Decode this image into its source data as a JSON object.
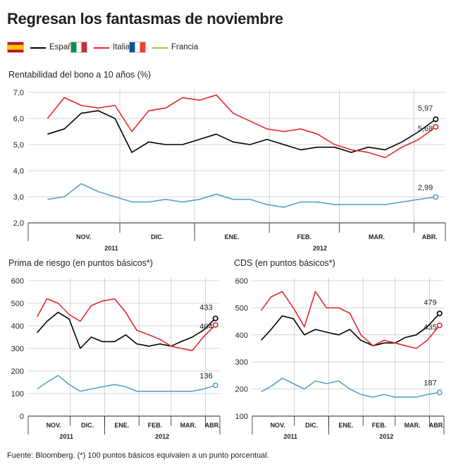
{
  "title": "Regresan los fantasmas de noviembre",
  "legend": [
    {
      "name": "España",
      "color": "#000000",
      "flag": "spain-flag-icon"
    },
    {
      "name": "Italia",
      "color": "#e8272b",
      "flag": "italy-flag-icon"
    },
    {
      "name": "Francia",
      "color": "#a6c53a",
      "flag": "france-flag-icon"
    }
  ],
  "footnote": "Fuente: Bloomberg. (*) 100 puntos básicos equivalen a un punto porcentual.",
  "colors": {
    "spain": "#000000",
    "italy": "#e8272b",
    "france": "#5aa0cf",
    "grid": "#c8c8c8"
  },
  "chart_data": [
    {
      "type": "line",
      "title": "Rentabilidad del bono a 10 años (%)",
      "ylim": [
        2.0,
        7.0
      ],
      "yticks": [
        "7,0",
        "6,0",
        "5,0",
        "4,0",
        "3,0",
        "2,0"
      ],
      "ytick_values": [
        7,
        6,
        5,
        4,
        3,
        2
      ],
      "months": [
        "NOV.",
        "DIC.",
        "ENE.",
        "FEB.",
        "MAR.",
        "ABR."
      ],
      "years": [
        "2011",
        "2012"
      ],
      "end_labels": [
        "5,97",
        "5,68",
        "2,99"
      ],
      "x": [
        "2011-11-01",
        "2011-11-08",
        "2011-11-15",
        "2011-11-22",
        "2011-11-29",
        "2011-12-06",
        "2011-12-13",
        "2011-12-20",
        "2011-12-27",
        "2012-01-03",
        "2012-01-10",
        "2012-01-17",
        "2012-01-24",
        "2012-01-31",
        "2012-02-07",
        "2012-02-14",
        "2012-02-21",
        "2012-02-28",
        "2012-03-06",
        "2012-03-13",
        "2012-03-20",
        "2012-03-27",
        "2012-04-03",
        "2012-04-10"
      ],
      "series": [
        {
          "name": "España",
          "values": [
            5.4,
            5.6,
            6.2,
            6.3,
            6.0,
            4.7,
            5.1,
            5.0,
            5.0,
            5.2,
            5.4,
            5.1,
            5.0,
            5.2,
            5.0,
            4.8,
            4.9,
            4.9,
            4.7,
            4.9,
            4.8,
            5.1,
            5.5,
            5.97
          ]
        },
        {
          "name": "Italia",
          "values": [
            6.0,
            6.8,
            6.5,
            6.4,
            6.5,
            5.5,
            6.3,
            6.4,
            6.8,
            6.7,
            6.9,
            6.2,
            5.9,
            5.6,
            5.5,
            5.6,
            5.4,
            5.0,
            4.8,
            4.7,
            4.5,
            4.9,
            5.2,
            5.68
          ]
        },
        {
          "name": "Francia",
          "values": [
            2.9,
            3.0,
            3.5,
            3.2,
            3.0,
            2.8,
            2.8,
            2.9,
            2.8,
            2.9,
            3.1,
            2.9,
            2.9,
            2.7,
            2.6,
            2.8,
            2.8,
            2.7,
            2.7,
            2.7,
            2.7,
            2.8,
            2.9,
            2.99
          ]
        }
      ]
    },
    {
      "type": "line",
      "title": "Prima de riesgo (en puntos básicos*)",
      "ylim": [
        0,
        600
      ],
      "yticks": [
        "600",
        "500",
        "400",
        "300",
        "200",
        "100",
        "0"
      ],
      "ytick_values": [
        600,
        500,
        400,
        300,
        200,
        100,
        0
      ],
      "months": [
        "NOV.",
        "DIC.",
        "ENE.",
        "FEB.",
        "MAR.",
        "ABR."
      ],
      "years": [
        "2011",
        "2012"
      ],
      "end_labels": [
        "433",
        "404",
        "136"
      ],
      "x": [
        "2011-11-01",
        "2011-11-10",
        "2011-11-20",
        "2011-11-30",
        "2011-12-10",
        "2011-12-20",
        "2011-12-30",
        "2012-01-10",
        "2012-01-20",
        "2012-01-30",
        "2012-02-10",
        "2012-02-20",
        "2012-03-01",
        "2012-03-10",
        "2012-03-20",
        "2012-03-30",
        "2012-04-10"
      ],
      "series": [
        {
          "name": "España",
          "values": [
            370,
            420,
            460,
            430,
            300,
            350,
            330,
            330,
            360,
            320,
            310,
            320,
            310,
            330,
            350,
            380,
            433
          ]
        },
        {
          "name": "Italia",
          "values": [
            440,
            520,
            500,
            450,
            420,
            490,
            510,
            520,
            460,
            380,
            360,
            340,
            310,
            300,
            290,
            350,
            404
          ]
        },
        {
          "name": "Francia",
          "values": [
            120,
            150,
            180,
            140,
            110,
            120,
            130,
            140,
            130,
            110,
            110,
            110,
            110,
            110,
            110,
            120,
            136
          ]
        }
      ]
    },
    {
      "type": "line",
      "title": "CDS (en puntos básicos*)",
      "ylim": [
        100,
        600
      ],
      "yticks": [
        "600",
        "500",
        "400",
        "300",
        "200",
        "100"
      ],
      "ytick_values": [
        600,
        500,
        400,
        300,
        200,
        100
      ],
      "months": [
        "NOV.",
        "DIC.",
        "ENE.",
        "FEB.",
        "MAR.",
        "ABR."
      ],
      "years": [
        "2011",
        "2012"
      ],
      "end_labels": [
        "479",
        "435",
        "187"
      ],
      "x": [
        "2011-11-01",
        "2011-11-10",
        "2011-11-20",
        "2011-11-30",
        "2011-12-10",
        "2011-12-20",
        "2011-12-30",
        "2012-01-10",
        "2012-01-20",
        "2012-01-30",
        "2012-02-10",
        "2012-02-20",
        "2012-03-01",
        "2012-03-10",
        "2012-03-20",
        "2012-03-30",
        "2012-04-10"
      ],
      "series": [
        {
          "name": "España",
          "values": [
            380,
            420,
            470,
            460,
            400,
            420,
            410,
            400,
            420,
            380,
            360,
            370,
            370,
            390,
            400,
            430,
            479
          ]
        },
        {
          "name": "Italia",
          "values": [
            490,
            540,
            560,
            500,
            430,
            560,
            500,
            500,
            480,
            400,
            360,
            380,
            370,
            360,
            350,
            380,
            435
          ]
        },
        {
          "name": "Francia",
          "values": [
            190,
            210,
            240,
            220,
            200,
            230,
            220,
            230,
            200,
            180,
            170,
            180,
            170,
            170,
            170,
            180,
            187
          ]
        }
      ]
    }
  ]
}
